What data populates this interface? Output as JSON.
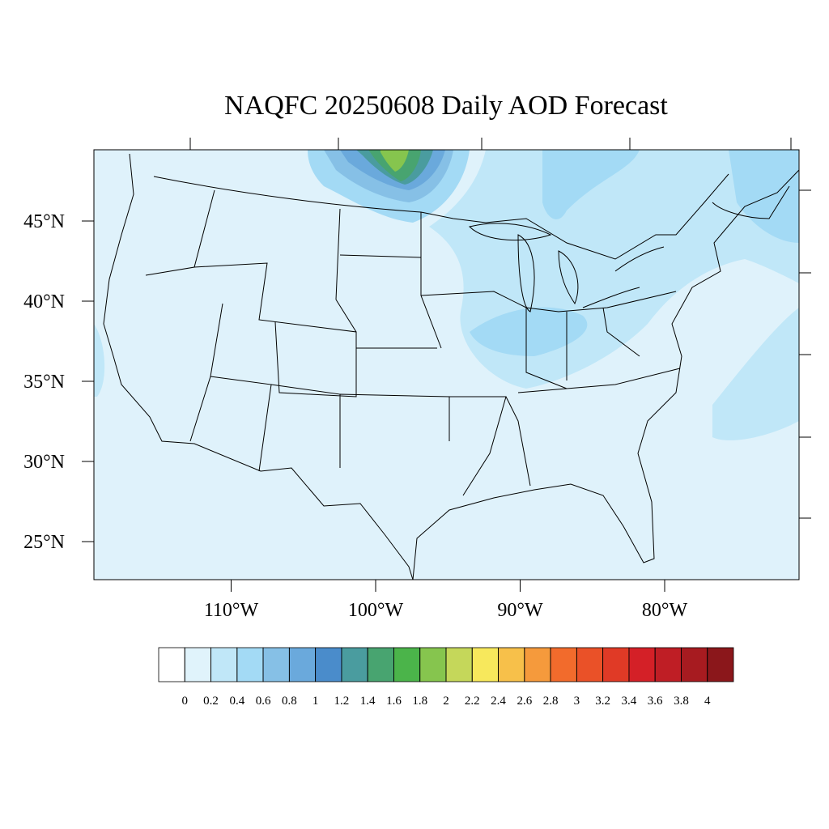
{
  "title": "NAQFC 20250608 Daily AOD Forecast",
  "map": {
    "lat_ticks": [
      {
        "value": 45,
        "label": "45°N"
      },
      {
        "value": 40,
        "label": "40°N"
      },
      {
        "value": 35,
        "label": "35°N"
      },
      {
        "value": 30,
        "label": "30°N"
      },
      {
        "value": 25,
        "label": "25°N"
      }
    ],
    "lon_ticks": [
      {
        "value": -110,
        "label": "110°W"
      },
      {
        "value": -100,
        "label": "100°W"
      },
      {
        "value": -90,
        "label": "90°W"
      },
      {
        "value": -80,
        "label": "80°W"
      }
    ]
  },
  "colorbar": {
    "levels": [
      0,
      0.2,
      0.4,
      0.6,
      0.8,
      1,
      1.2,
      1.4,
      1.6,
      1.8,
      2,
      2.2,
      2.4,
      2.6,
      2.8,
      3,
      3.2,
      3.4,
      3.6,
      3.8,
      4
    ],
    "colors": [
      "#ffffff",
      "#e0f3fb",
      "#c0e7f8",
      "#a3daf5",
      "#86c0e6",
      "#6aa9dc",
      "#4a8ccb",
      "#4a9c9f",
      "#48a470",
      "#4bb44a",
      "#86c54e",
      "#c5d75a",
      "#f7e85c",
      "#f7c04a",
      "#f59a3c",
      "#f26b2c",
      "#ea5128",
      "#e03a26",
      "#d42027",
      "#bf1e25",
      "#a71b20",
      "#8b171b"
    ]
  }
}
